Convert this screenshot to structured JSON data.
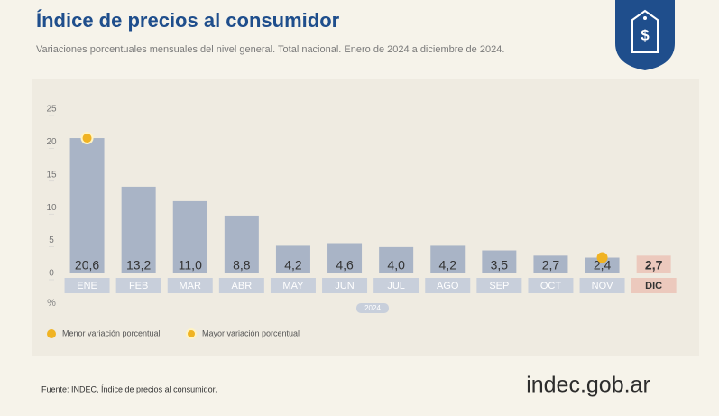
{
  "chart_data": {
    "type": "bar",
    "title": "Índice de precios al consumidor",
    "subtitle": "Variaciones porcentuales mensuales del nivel general. Total nacional. Enero de 2024 a diciembre de 2024.",
    "categories": [
      "ENE",
      "FEB",
      "MAR",
      "ABR",
      "MAY",
      "JUN",
      "JUL",
      "AGO",
      "SEP",
      "OCT",
      "NOV",
      "DIC"
    ],
    "values": [
      20.6,
      13.2,
      11.0,
      8.8,
      4.2,
      4.6,
      4.0,
      4.2,
      3.5,
      2.7,
      2.4,
      2.7
    ],
    "value_labels": [
      "20,6",
      "13,2",
      "11,0",
      "8,8",
      "4,2",
      "4,6",
      "4,0",
      "4,2",
      "3,5",
      "2,7",
      "2,4",
      "2,7"
    ],
    "color": "#a9b4c6",
    "highlight_category": "DIC",
    "highlight_color": "#ecc9bd",
    "ylim": [
      0,
      25
    ],
    "yticks": [
      0,
      5,
      10,
      15,
      20,
      25
    ],
    "y_unit": "%",
    "x_group_label": "2024",
    "markers": [
      {
        "label": "Menor variación porcentual",
        "category": "NOV",
        "color": "#f0b323"
      },
      {
        "label": "Mayor variación porcentual",
        "category": "ENE",
        "color": "#f0b323"
      }
    ],
    "source": "Fuente: INDEC, Índice de precios al consumidor.",
    "brand": "indec.gob.ar"
  }
}
